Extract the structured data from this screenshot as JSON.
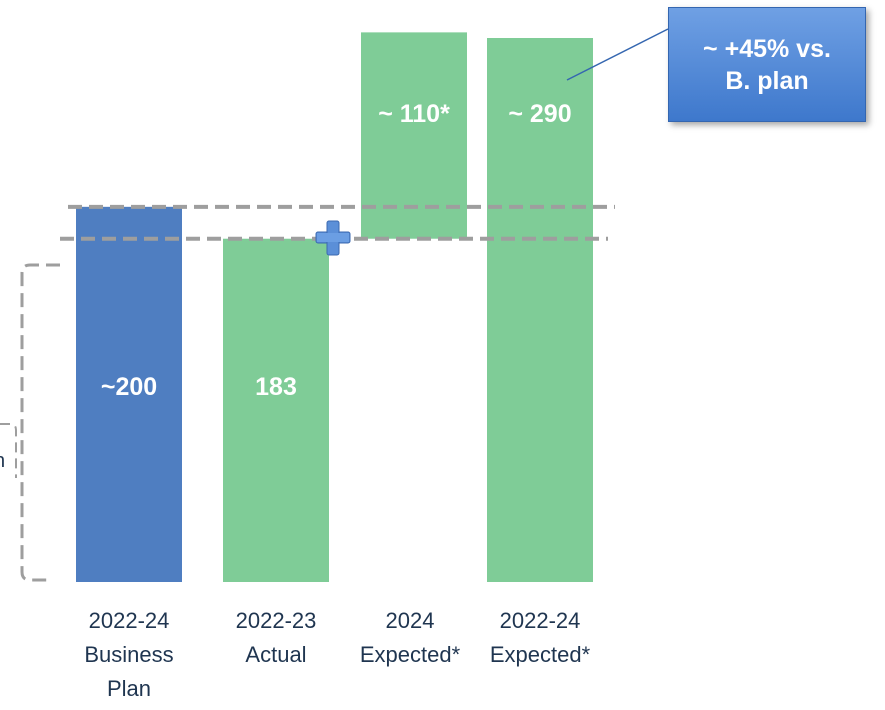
{
  "chart_data": {
    "type": "bar",
    "categories": [
      "2022-24 Business Plan",
      "2022-23 Actual",
      "2024 Expected*",
      "2022-24 Expected*"
    ],
    "category_lines": [
      [
        "2022-24",
        "Business",
        "Plan"
      ],
      [
        "2022-23",
        "Actual"
      ],
      [
        "2024",
        "Expected*"
      ],
      [
        "2022-24",
        "Expected*"
      ]
    ],
    "values": [
      200,
      183,
      110,
      290
    ],
    "value_labels": [
      "~200",
      "183",
      "~ 110*",
      "~ 290"
    ],
    "bar_kind": [
      "total",
      "total",
      "increment",
      "total"
    ],
    "colors": {
      "business_plan": "#4f7ec1",
      "actual": "#7fcc97",
      "guide_line": "#9e9e9e",
      "plus": "#5b8fd8"
    },
    "callout": "~ +45% vs. B. plan",
    "callout_lines": [
      "~ +45% vs.",
      "B. plan"
    ],
    "cut_off_label": "n",
    "grid": false,
    "legend": "none"
  }
}
